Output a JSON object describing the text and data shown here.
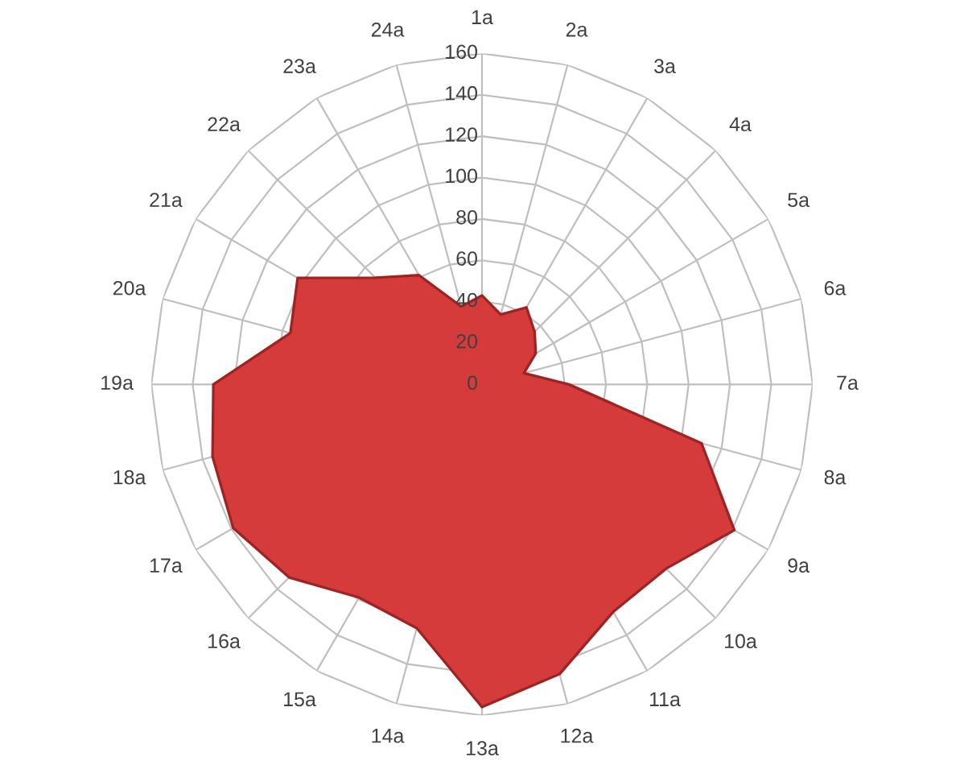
{
  "chart_data": {
    "type": "radar",
    "categories": [
      "1a",
      "2a",
      "3a",
      "4a",
      "5a",
      "6a",
      "7a",
      "8a",
      "9a",
      "10a",
      "11a",
      "12a",
      "13a",
      "14a",
      "15a",
      "16a",
      "17a",
      "18a",
      "19a",
      "20a",
      "21a",
      "22a",
      "23a",
      "24a"
    ],
    "series": [
      {
        "color": "#d63b3b",
        "type": "area",
        "values": [
          43,
          35,
          43,
          36,
          30,
          21,
          42,
          110,
          141,
          126,
          127,
          145,
          156,
          122,
          119,
          132,
          139,
          135,
          130,
          96,
          103,
          73,
          61,
          39
        ]
      }
    ],
    "ylim": [
      0,
      160
    ],
    "yticks": [
      0,
      20,
      40,
      60,
      80,
      100,
      120,
      140,
      160
    ],
    "grid": true
  }
}
